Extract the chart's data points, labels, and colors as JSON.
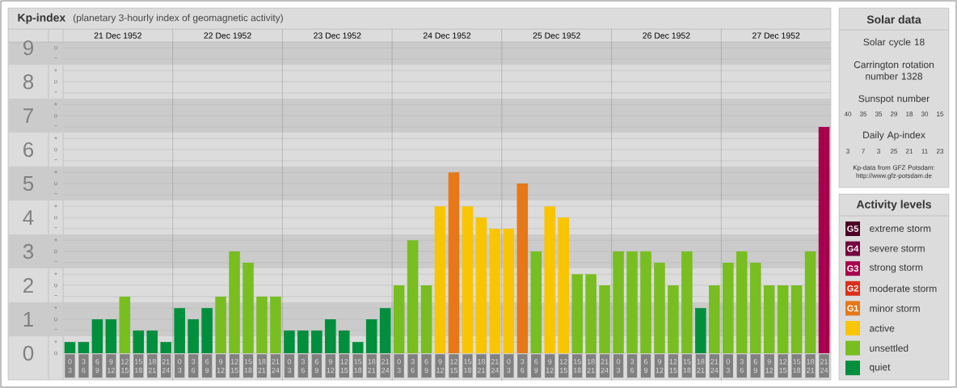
{
  "chart_data": [
    {
      "type": "bar",
      "title": "Kp-index",
      "subtitle": "(planetary 3-hourly index of geomagnetic activity)",
      "categories": [
        "0 3",
        "3 6",
        "6 9",
        "9 12",
        "12 15",
        "15 18",
        "18 21",
        "21 24",
        "0 3",
        "3 6",
        "6 9",
        "9 12",
        "12 15",
        "15 18",
        "18 21",
        "21 24",
        "0 3",
        "3 6",
        "6 9",
        "9 12",
        "12 15",
        "15 18",
        "18 21",
        "21 24",
        "0 3",
        "3 6",
        "6 9",
        "9 12",
        "12 15",
        "15 18",
        "18 21",
        "21 24",
        "0 3",
        "3 6",
        "6 9",
        "9 12",
        "12 15",
        "15 18",
        "18 21",
        "21 24",
        "0 3",
        "3 6",
        "6 9",
        "9 12",
        "12 15",
        "15 18",
        "18 21",
        "21 24",
        "0 3",
        "3 6",
        "6 9",
        "9 12",
        "12 15",
        "15 18",
        "18 21",
        "21 24"
      ],
      "values": [
        0.33,
        0.33,
        1,
        1,
        1.67,
        0.67,
        0.67,
        0.33,
        1.33,
        1,
        1.33,
        1.67,
        3,
        2.67,
        1.67,
        1.67,
        0.67,
        0.67,
        0.67,
        1,
        0.67,
        0.33,
        1,
        1.33,
        2,
        3.33,
        2,
        4.33,
        5.33,
        4.33,
        4,
        3.67,
        3.67,
        5,
        3,
        4.33,
        4,
        2.33,
        2.33,
        2,
        3,
        3,
        3,
        2.67,
        2,
        3,
        1.33,
        2,
        2.67,
        3,
        2.67,
        2,
        2,
        2,
        3,
        6.67
      ],
      "colors": [
        "#008f3d",
        "#008f3d",
        "#008f3d",
        "#008f3d",
        "#78be20",
        "#008f3d",
        "#008f3d",
        "#008f3d",
        "#008f3d",
        "#008f3d",
        "#008f3d",
        "#78be20",
        "#78be20",
        "#78be20",
        "#78be20",
        "#78be20",
        "#008f3d",
        "#008f3d",
        "#008f3d",
        "#008f3d",
        "#008f3d",
        "#008f3d",
        "#008f3d",
        "#008f3d",
        "#78be20",
        "#78be20",
        "#78be20",
        "#f8c500",
        "#e67817",
        "#f8c500",
        "#f8c500",
        "#f8c500",
        "#f8c500",
        "#e67817",
        "#78be20",
        "#f8c500",
        "#f8c500",
        "#78be20",
        "#78be20",
        "#78be20",
        "#78be20",
        "#78be20",
        "#78be20",
        "#78be20",
        "#78be20",
        "#78be20",
        "#008f3d",
        "#78be20",
        "#78be20",
        "#78be20",
        "#78be20",
        "#78be20",
        "#78be20",
        "#78be20",
        "#78be20",
        "#a8004f"
      ],
      "ylim": [
        0,
        9.17
      ],
      "yticks": [
        0,
        {
          "value": 0.33,
          "label": null
        },
        {
          "value": 0.67,
          "label": null
        },
        1,
        {
          "value": 1.33,
          "label": null
        },
        {
          "value": 1.67,
          "label": null
        },
        2,
        {
          "value": 2.33,
          "label": null
        },
        {
          "value": 2.67,
          "label": null
        },
        3,
        {
          "value": 3.33,
          "label": null
        },
        {
          "value": 3.67,
          "label": null
        },
        4,
        {
          "value": 4.33,
          "label": null
        },
        {
          "value": 4.67,
          "label": null
        },
        5,
        {
          "value": 5.33,
          "label": null
        },
        {
          "value": 5.67,
          "label": null
        },
        6,
        {
          "value": 6.33,
          "label": null
        },
        {
          "value": 6.67,
          "label": null
        },
        7,
        {
          "value": 7.33,
          "label": null
        },
        {
          "value": 7.67,
          "label": null
        },
        8,
        {
          "value": 8.33,
          "label": null
        },
        {
          "value": 8.67,
          "label": null
        },
        9
      ],
      "grid": true,
      "bands": [
        {
          "axis": "y",
          "from": 0.5,
          "to": 1.5,
          "color": "#cbcbcb"
        },
        {
          "axis": "y",
          "from": 2.5,
          "to": 3.5,
          "color": "#cbcbcb"
        },
        {
          "axis": "y",
          "from": 4.5,
          "to": 5.5,
          "color": "#cbcbcb"
        },
        {
          "axis": "y",
          "from": 6.5,
          "to": 7.5,
          "color": "#cbcbcb"
        },
        {
          "axis": "y",
          "from": 8.5,
          "to": 9.17,
          "color": "#cbcbcb"
        }
      ],
      "annotations": [
        "21 Dec 1952",
        "22 Dec 1952",
        "23 Dec 1952",
        "24 Dec 1952",
        "25 Dec 1952",
        "26 Dec 1952",
        "27 Dec 1952",
        "o",
        "+",
        "−",
        "o",
        "+",
        "−",
        "o",
        "+",
        "−",
        "o",
        "+",
        "−",
        "o",
        "+",
        "−",
        "o",
        "+",
        "−",
        "o",
        "+",
        "−",
        "o",
        "+",
        "−",
        "o",
        "+",
        "−",
        "o"
      ]
    },
    {
      "type": "other",
      "title": "Solar data",
      "annotations": [
        "Solar cycle 18",
        "Carrington rotation number 1328",
        "Sunspot number",
        "40",
        "35",
        "35",
        "29",
        "18",
        "30",
        "15",
        "Daily Ap-index",
        "3",
        "7",
        "3",
        "25",
        "21",
        "11",
        "23",
        "Kp-data from GFZ Potsdam:",
        "http://www.gfz-potsdam.de"
      ]
    },
    {
      "type": "other",
      "title": "Activity levels",
      "categories": [
        "extreme storm",
        "severe storm",
        "strong storm",
        "moderate storm",
        "minor storm",
        "active",
        "unsettled",
        "quiet"
      ],
      "colors": [
        "#4d0026",
        "#74003f",
        "#a8004f",
        "#dc2f1a",
        "#e67817",
        "#f8c500",
        "#78be20",
        "#008f3d"
      ],
      "value_labels": [
        "G5",
        "G4",
        "G3",
        "G2",
        "G1",
        null,
        null,
        null
      ]
    }
  ]
}
